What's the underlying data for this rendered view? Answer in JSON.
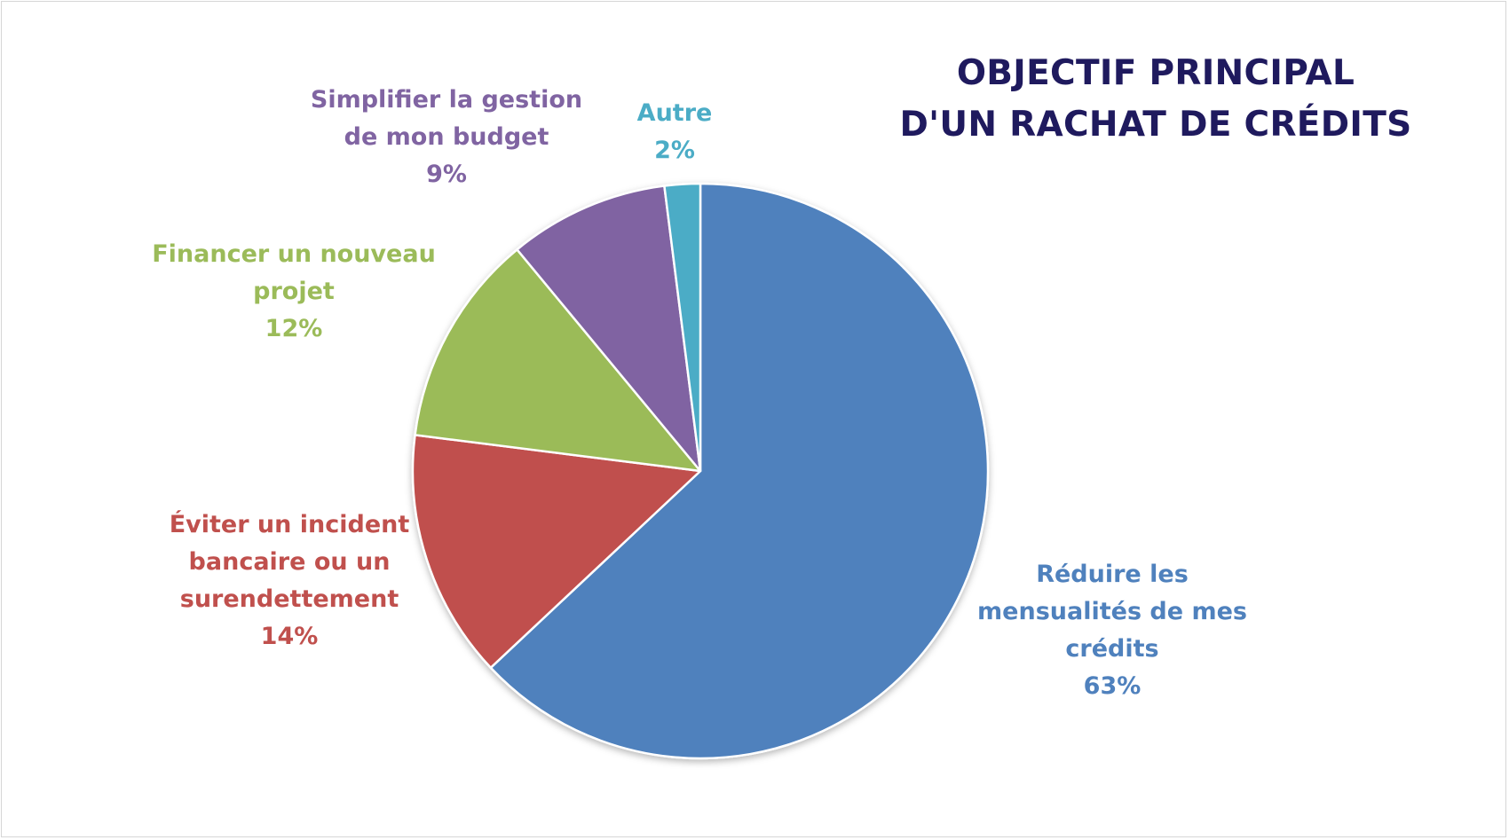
{
  "chart_data": {
    "type": "pie",
    "title": [
      "OBJECTIF PRINCIPAL",
      "D'UN RACHAT DE CRÉDITS"
    ],
    "slices": [
      {
        "label": [
          "Réduire les",
          "mensualités de mes",
          "crédits"
        ],
        "value": 63,
        "value_label": "63%",
        "color": "#4f81bd"
      },
      {
        "label": [
          "Éviter un incident",
          "bancaire ou un",
          "surendettement"
        ],
        "value": 14,
        "value_label": "14%",
        "color": "#c0504d"
      },
      {
        "label": [
          "Financer un nouveau",
          "projet"
        ],
        "value": 12,
        "value_label": "12%",
        "color": "#9bbb59"
      },
      {
        "label": [
          "Simplifier la gestion",
          "de mon budget"
        ],
        "value": 9,
        "value_label": "9%",
        "color": "#8064a2"
      },
      {
        "label": [
          "Autre"
        ],
        "value": 2,
        "value_label": "2%",
        "color": "#4bacc6"
      }
    ],
    "start_angle_deg": 0,
    "direction": "clockwise",
    "legend": "none",
    "data_labels": "outside"
  }
}
